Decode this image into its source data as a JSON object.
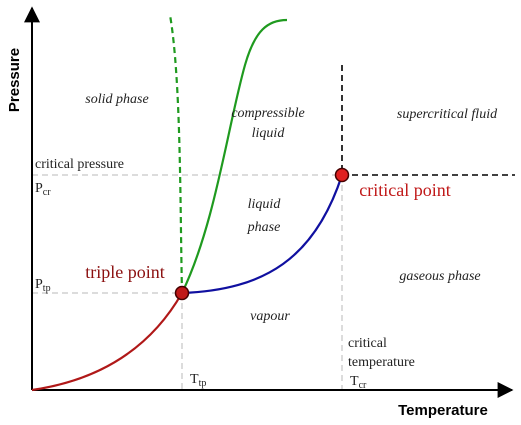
{
  "axes": {
    "x_label": "Temperature",
    "y_label": "Pressure"
  },
  "regions": {
    "solid": "solid phase",
    "compressible_1": "compressible",
    "compressible_2": "liquid",
    "supercritical": "supercritical fluid",
    "liquid_1": "liquid",
    "liquid_2": "phase",
    "gaseous": "gaseous phase",
    "vapour": "vapour"
  },
  "points": {
    "critical": "critical point",
    "triple": "triple point"
  },
  "levels": {
    "critical_pressure": "critical pressure",
    "p_cr": {
      "symbol": "P",
      "subscript": "cr"
    },
    "p_tp": {
      "symbol": "P",
      "subscript": "tp"
    },
    "critical_temperature_1": "critical",
    "critical_temperature_2": "temperature",
    "t_cr": {
      "symbol": "T",
      "subscript": "cr"
    },
    "t_tp": {
      "symbol": "T",
      "subscript": "tp"
    }
  }
}
